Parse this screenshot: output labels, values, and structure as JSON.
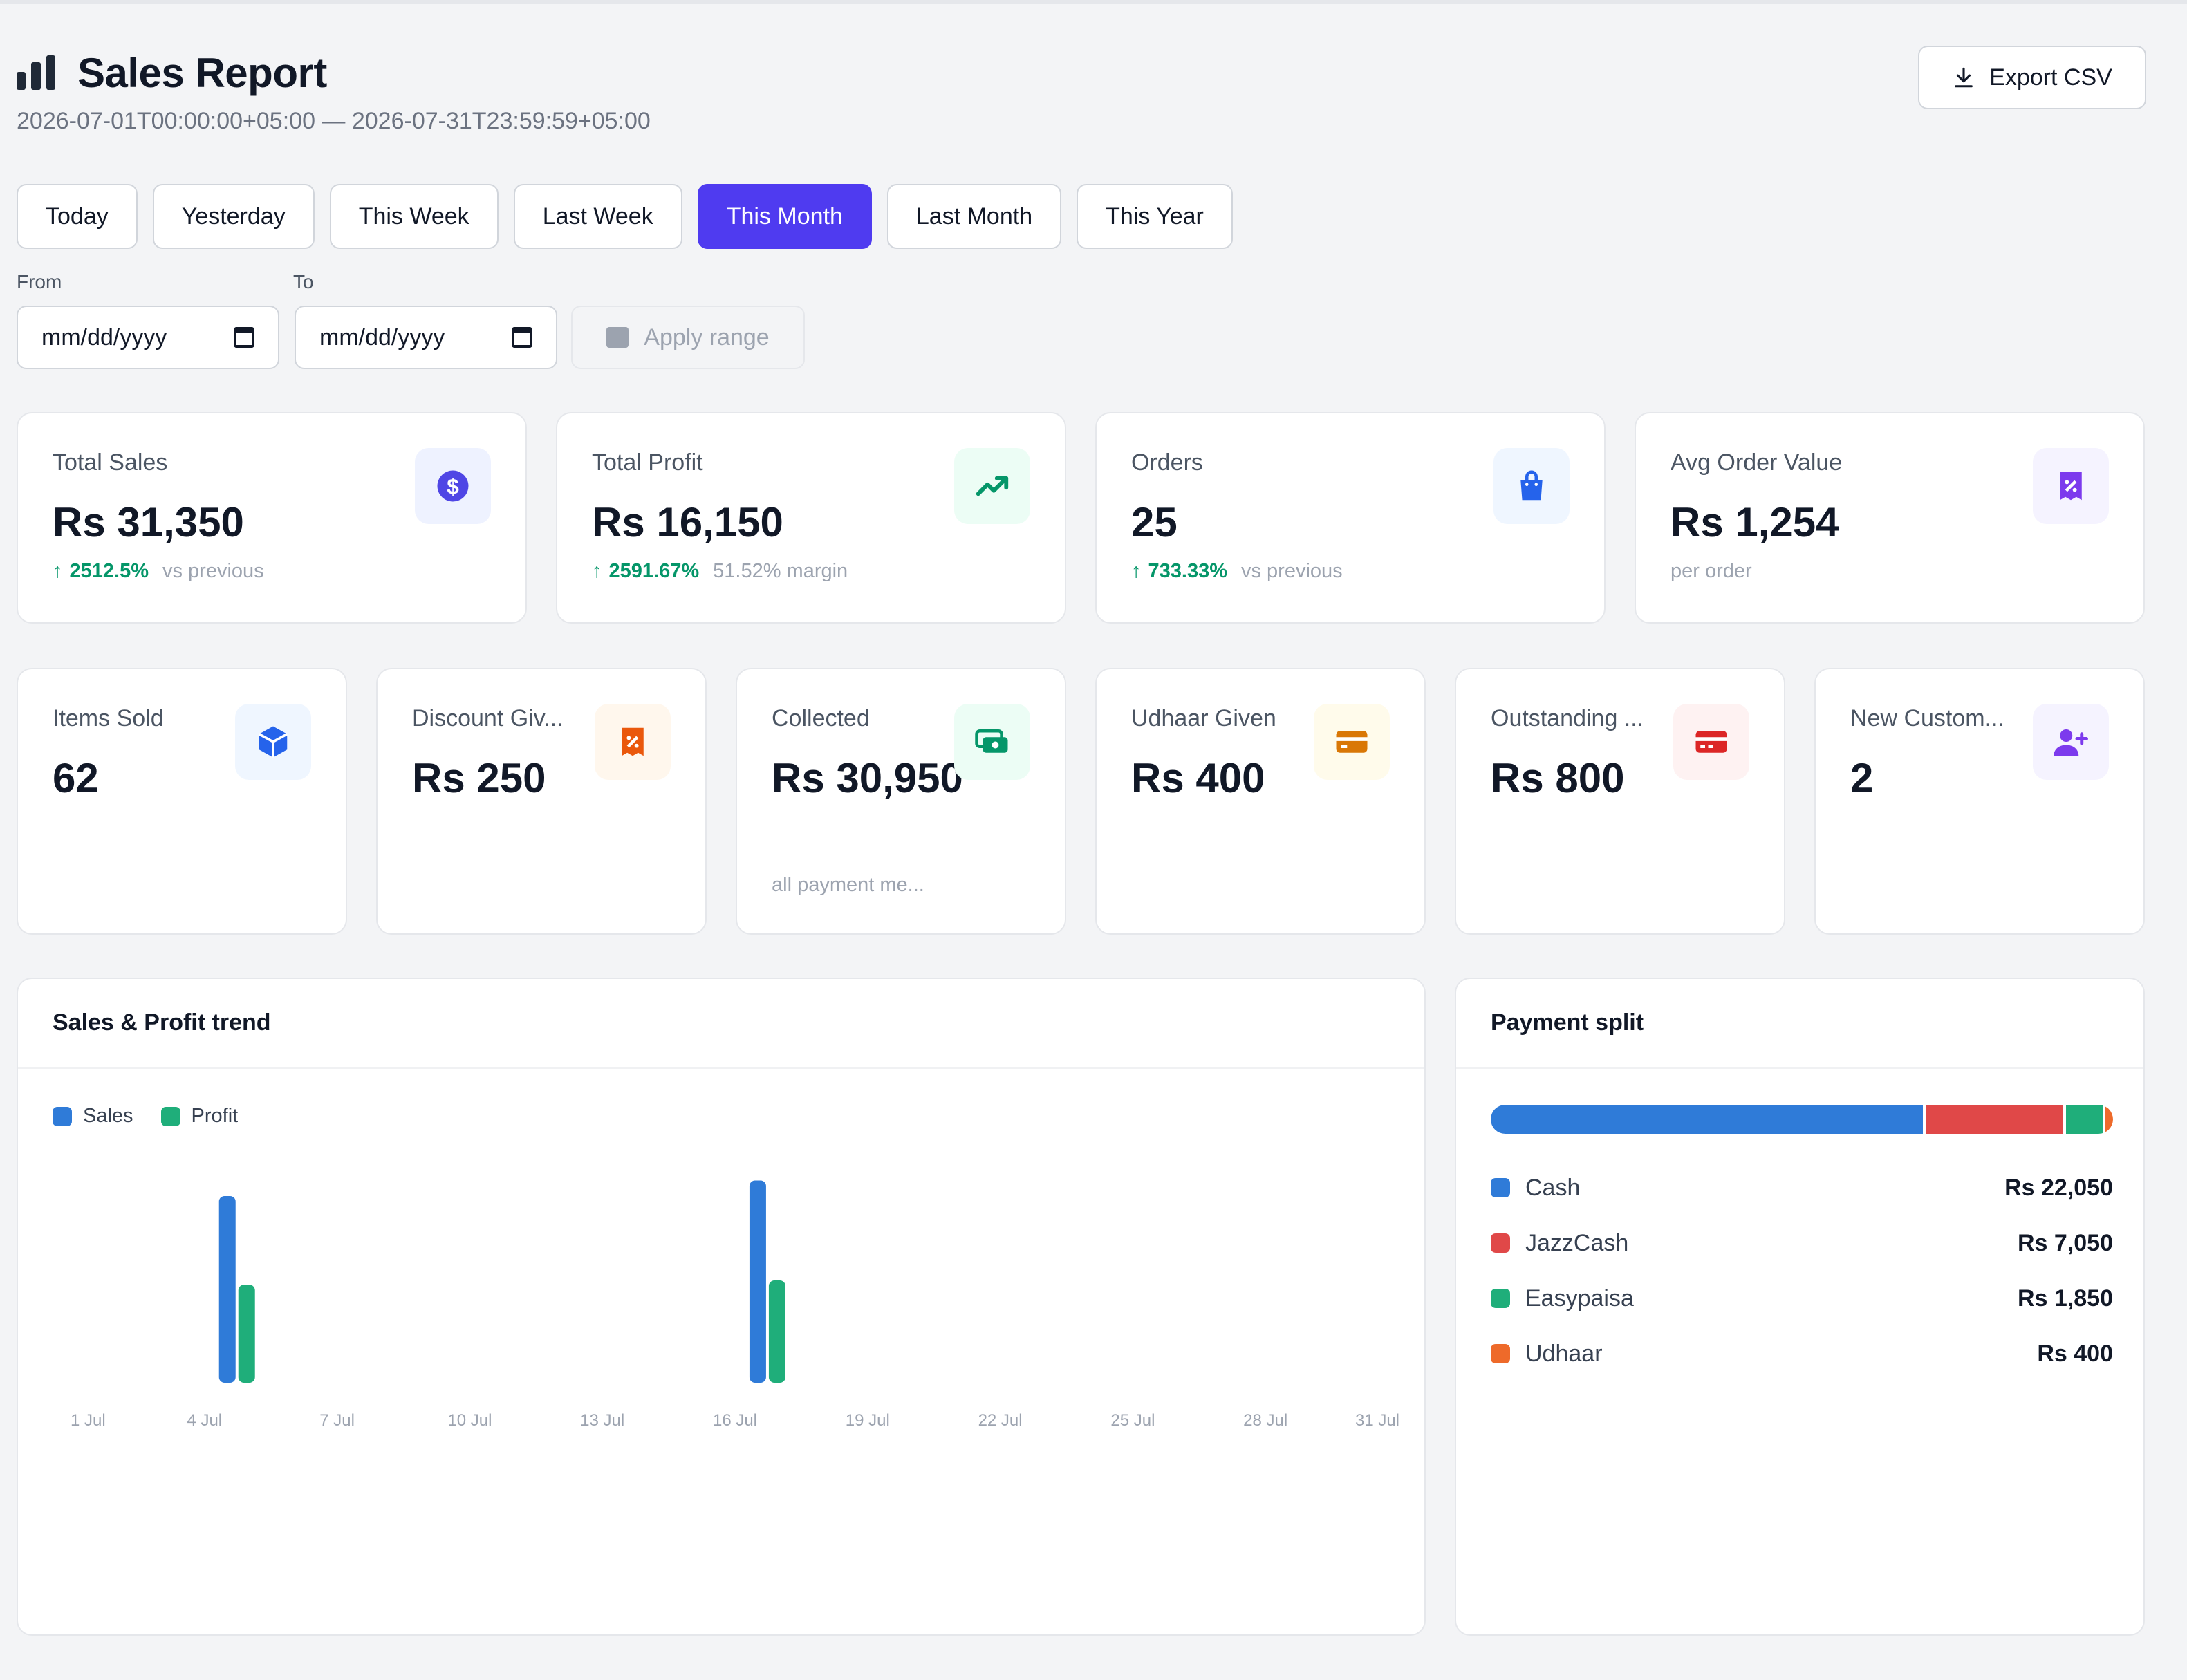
{
  "header": {
    "title": "Sales Report",
    "range": "2026-07-01T00:00:00+05:00 — 2026-07-31T23:59:59+05:00",
    "export_label": "Export CSV"
  },
  "presets": [
    "Today",
    "Yesterday",
    "This Week",
    "Last Week",
    "This Month",
    "Last Month",
    "This Year"
  ],
  "active_preset": "This Month",
  "date_range": {
    "from_label": "From",
    "to_label": "To",
    "from_value": "mm/dd/yyyy",
    "to_value": "mm/dd/yyyy",
    "apply_label": "Apply range"
  },
  "kpis_top": [
    {
      "label": "Total Sales",
      "value": "Rs 31,350",
      "change": "2512.5%",
      "note": "vs previous",
      "icon": "dollar-icon",
      "color": "#4f46e5",
      "bg": "#eef2ff"
    },
    {
      "label": "Total Profit",
      "value": "Rs 16,150",
      "change": "2591.67%",
      "note": "51.52% margin",
      "icon": "trending-up-icon",
      "color": "#059669",
      "bg": "#ecfdf5"
    },
    {
      "label": "Orders",
      "value": "25",
      "change": "733.33%",
      "note": "vs previous",
      "icon": "shopping-bag-icon",
      "color": "#2563eb",
      "bg": "#eff6ff"
    },
    {
      "label": "Avg Order Value",
      "value": "Rs 1,254",
      "change": "",
      "note": "per order",
      "icon": "receipt-percent-icon",
      "color": "#7c3aed",
      "bg": "#f5f3ff"
    }
  ],
  "kpis_small": [
    {
      "label": "Items Sold",
      "value": "62",
      "note": "",
      "icon": "cube-icon",
      "color": "#2563eb",
      "bg": "#eff6ff"
    },
    {
      "label": "Discount Giv...",
      "value": "Rs 250",
      "note": "",
      "icon": "discount-tag-icon",
      "color": "#ea580c",
      "bg": "#fff7ed"
    },
    {
      "label": "Collected",
      "value": "Rs 30,950",
      "note": "all payment me...",
      "icon": "cash-icon",
      "color": "#059669",
      "bg": "#ecfdf5"
    },
    {
      "label": "Udhaar Given",
      "value": "Rs 400",
      "note": "",
      "icon": "credit-card-icon",
      "color": "#d97706",
      "bg": "#fffbeb"
    },
    {
      "label": "Outstanding ...",
      "value": "Rs 800",
      "note": "",
      "icon": "card-alert-icon",
      "color": "#dc2626",
      "bg": "#fef2f2"
    },
    {
      "label": "New Custom...",
      "value": "2",
      "note": "",
      "icon": "user-plus-icon",
      "color": "#7c3aed",
      "bg": "#f5f3ff"
    }
  ],
  "trend": {
    "title": "Sales & Profit trend",
    "legend": [
      {
        "name": "Sales",
        "color": "#2f7bd8"
      },
      {
        "name": "Profit",
        "color": "#1fae7a"
      }
    ]
  },
  "chart_data": {
    "type": "bar",
    "title": "Sales & Profit trend",
    "x": [
      "1 Jul",
      "2 Jul",
      "3 Jul",
      "4 Jul",
      "5 Jul",
      "6 Jul",
      "7 Jul",
      "8 Jul",
      "9 Jul",
      "10 Jul",
      "11 Jul",
      "12 Jul",
      "13 Jul",
      "14 Jul",
      "15 Jul",
      "16 Jul",
      "17 Jul",
      "18 Jul",
      "19 Jul",
      "20 Jul",
      "21 Jul",
      "22 Jul",
      "23 Jul",
      "24 Jul",
      "25 Jul",
      "26 Jul",
      "27 Jul",
      "28 Jul",
      "29 Jul",
      "30 Jul",
      "31 Jul"
    ],
    "tick_labels": [
      "1 Jul",
      "4 Jul",
      "7 Jul",
      "10 Jul",
      "13 Jul",
      "16 Jul",
      "19 Jul",
      "22 Jul",
      "25 Jul",
      "28 Jul",
      "31 Jul"
    ],
    "series": [
      {
        "name": "Sales",
        "color": "#2f7bd8",
        "values": [
          0,
          0,
          0,
          0,
          15050,
          0,
          0,
          0,
          0,
          0,
          0,
          0,
          0,
          0,
          0,
          0,
          16300,
          0,
          0,
          0,
          0,
          0,
          0,
          0,
          0,
          0,
          0,
          0,
          0,
          0,
          0
        ]
      },
      {
        "name": "Profit",
        "color": "#1fae7a",
        "values": [
          0,
          0,
          0,
          0,
          7900,
          0,
          0,
          0,
          0,
          0,
          0,
          0,
          0,
          0,
          0,
          0,
          8250,
          0,
          0,
          0,
          0,
          0,
          0,
          0,
          0,
          0,
          0,
          0,
          0,
          0,
          0
        ]
      }
    ],
    "ylim": [
      0,
      17500
    ],
    "grid": false,
    "legend": "top-left"
  },
  "payment_split": {
    "title": "Payment split",
    "items": [
      {
        "name": "Cash",
        "amount": "Rs 22,050",
        "value": 22050,
        "color": "#2f7bd8"
      },
      {
        "name": "JazzCash",
        "amount": "Rs 7,050",
        "value": 7050,
        "color": "#e04848"
      },
      {
        "name": "Easypaisa",
        "amount": "Rs 1,850",
        "value": 1850,
        "color": "#1fae7a"
      },
      {
        "name": "Udhaar",
        "amount": "Rs 400",
        "value": 400,
        "color": "#ee6a2a"
      }
    ]
  }
}
